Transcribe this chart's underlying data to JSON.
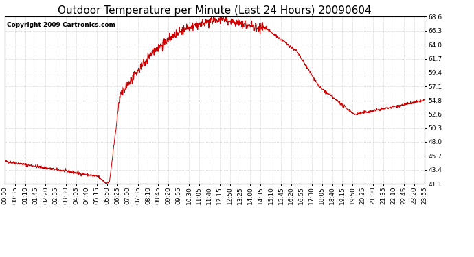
{
  "title": "Outdoor Temperature per Minute (Last 24 Hours) 20090604",
  "copyright": "Copyright 2009 Cartronics.com",
  "line_color": "#cc0000",
  "background_color": "#ffffff",
  "grid_color": "#bbbbbb",
  "yticks": [
    41.1,
    43.4,
    45.7,
    48.0,
    50.3,
    52.6,
    54.8,
    57.1,
    59.4,
    61.7,
    64.0,
    66.3,
    68.6
  ],
  "ymin": 41.1,
  "ymax": 68.6,
  "xtick_labels": [
    "00:00",
    "00:35",
    "01:10",
    "01:45",
    "02:20",
    "02:55",
    "03:30",
    "04:05",
    "04:40",
    "05:15",
    "05:50",
    "06:25",
    "07:00",
    "07:35",
    "08:10",
    "08:45",
    "09:20",
    "09:55",
    "10:30",
    "11:05",
    "11:40",
    "12:15",
    "12:50",
    "13:25",
    "14:00",
    "14:35",
    "15:10",
    "15:45",
    "16:20",
    "16:55",
    "17:30",
    "18:05",
    "18:40",
    "19:15",
    "19:50",
    "20:25",
    "21:00",
    "21:35",
    "22:10",
    "22:45",
    "23:20",
    "23:55"
  ],
  "title_fontsize": 11,
  "tick_fontsize": 6.5,
  "copyright_fontsize": 6.5
}
